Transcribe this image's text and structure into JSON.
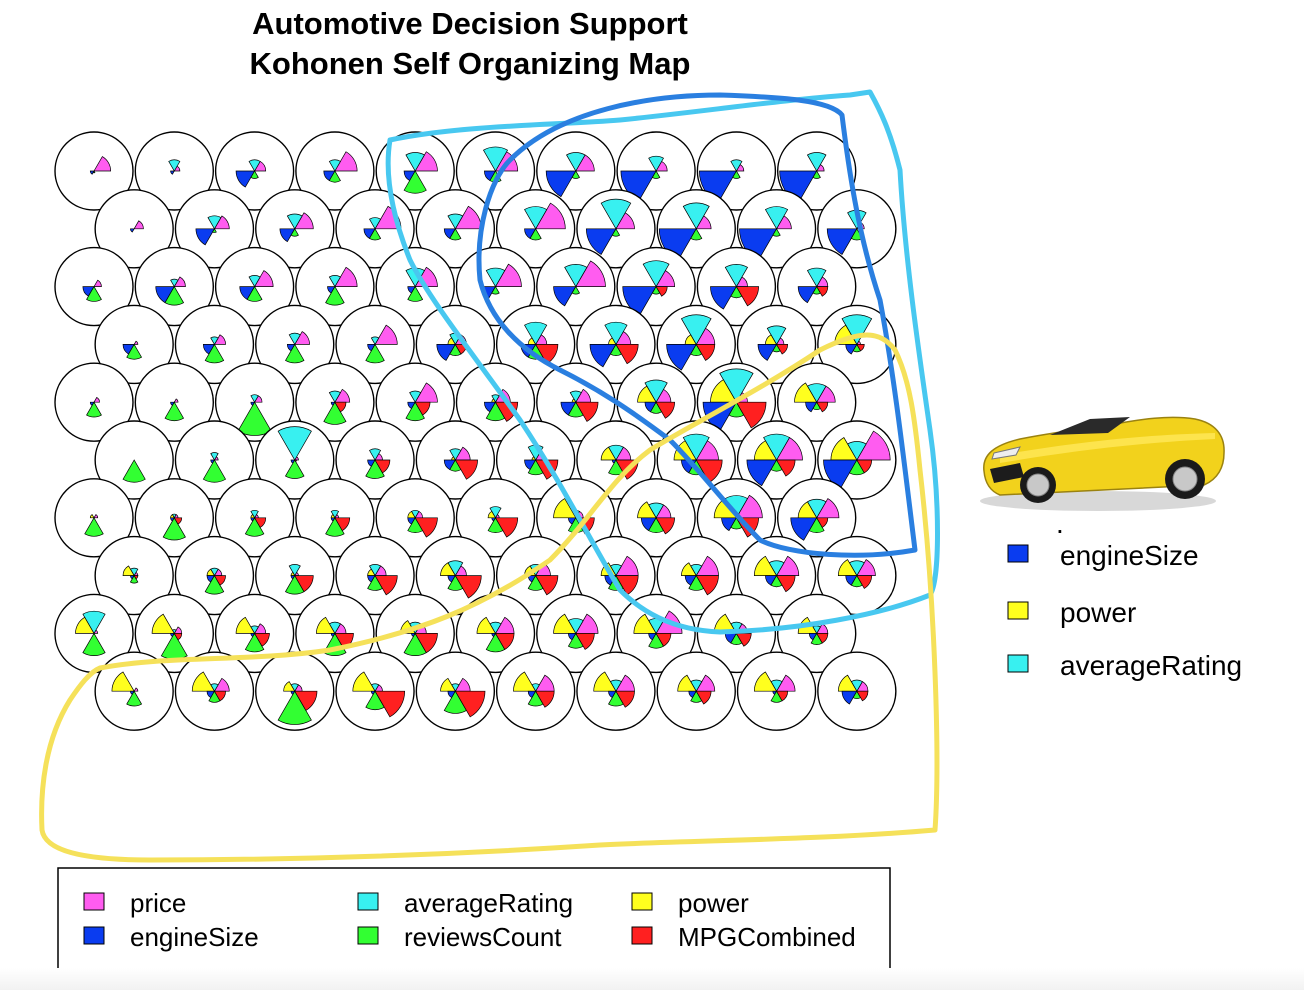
{
  "chart_data": {
    "type": "kohonen-som-codes-plot",
    "title": "Automotive Decision Support",
    "subtitle": "Kohonen Self Organizing Map",
    "grid": {
      "rows": 10,
      "cols": 10,
      "topology": "hexagonal"
    },
    "variables": [
      "price",
      "averageRating",
      "power",
      "engineSize",
      "reviewsCount",
      "MPGCombined"
    ],
    "colors": {
      "price": "#ff5cf0",
      "averageRating": "#38f0f0",
      "power": "#ffff1e",
      "engineSize": "#0a3cf0",
      "reviewsCount": "#32ff32",
      "MPGCombined": "#ff2020"
    },
    "legend": {
      "position": "bottom",
      "columns": [
        [
          "price",
          "engineSize"
        ],
        [
          "averageRating",
          "reviewsCount"
        ],
        [
          "power",
          "MPGCombined"
        ]
      ]
    },
    "side_legend": {
      "position": "right",
      "dot": ".",
      "items": [
        {
          "label": "engineSize",
          "color": "#0a3cf0"
        },
        {
          "label": "power",
          "color": "#ffff1e"
        },
        {
          "label": "averageRating",
          "color": "#38f0f0"
        }
      ]
    },
    "cluster_annotations": [
      {
        "name": "light-blue region",
        "color": "#48c8f0"
      },
      {
        "name": "dark-blue region",
        "color": "#2a7fe0"
      },
      {
        "name": "yellow region",
        "color": "#f5e15a"
      }
    ],
    "car_image": "yellow-convertible-sports-car",
    "codes_note": "values are normalized segment radii (0-1) per variable, order: price, averageRating, power, engineSize, reviewsCount, MPGCombined",
    "codes": [
      [
        [
          0.45,
          0,
          0,
          0.1,
          0.05,
          0
        ],
        [
          0.15,
          0.3,
          0,
          0.1,
          0,
          0
        ],
        [
          0.3,
          0.3,
          0,
          0.5,
          0.2,
          0
        ],
        [
          0.6,
          0.3,
          0,
          0.3,
          0.3,
          0
        ],
        [
          0.6,
          0.5,
          0,
          0.3,
          0.6,
          0
        ],
        [
          0.6,
          0.65,
          0,
          0.3,
          0.3,
          0
        ],
        [
          0.5,
          0.5,
          0,
          0.8,
          0.2,
          0
        ],
        [
          0.3,
          0.4,
          0,
          0.95,
          0.2,
          0
        ],
        [
          0.2,
          0.3,
          0,
          1.0,
          0.2,
          0
        ],
        [
          0.2,
          0.5,
          0,
          1.0,
          0.2,
          0
        ]
      ],
      [
        [
          0.25,
          0,
          0,
          0.1,
          0,
          0
        ],
        [
          0.4,
          0.35,
          0,
          0.5,
          0.1,
          0
        ],
        [
          0.5,
          0.4,
          0,
          0.4,
          0.2,
          0
        ],
        [
          0.7,
          0.3,
          0,
          0.3,
          0.3,
          0
        ],
        [
          0.7,
          0.4,
          0,
          0.3,
          0.3,
          0
        ],
        [
          0.8,
          0.6,
          0,
          0.3,
          0.3,
          0
        ],
        [
          0.5,
          0.8,
          0,
          0.8,
          0.2,
          0
        ],
        [
          0.4,
          0.7,
          0,
          1.0,
          0.3,
          0
        ],
        [
          0.4,
          0.6,
          0,
          1.0,
          0.2,
          0
        ],
        [
          0.2,
          0.5,
          0,
          0.8,
          0.3,
          0
        ]
      ],
      [
        [
          0.2,
          0,
          0,
          0.3,
          0.4,
          0
        ],
        [
          0.3,
          0.2,
          0,
          0.5,
          0.5,
          0
        ],
        [
          0.5,
          0.3,
          0,
          0.4,
          0.4,
          0
        ],
        [
          0.6,
          0.3,
          0,
          0.2,
          0.5,
          0
        ],
        [
          0.6,
          0.5,
          0,
          0.2,
          0.4,
          0
        ],
        [
          0.7,
          0.5,
          0,
          0.4,
          0.2,
          0
        ],
        [
          0.8,
          0.6,
          0,
          0.6,
          0.2,
          0
        ],
        [
          0.5,
          0.7,
          0,
          0.9,
          0.2,
          0.3
        ],
        [
          0.3,
          0.6,
          0,
          0.7,
          0.3,
          0.6
        ],
        [
          0.3,
          0.5,
          0,
          0.5,
          0.2,
          0.3
        ]
      ],
      [
        [
          0.1,
          0,
          0,
          0.3,
          0.4,
          0
        ],
        [
          0.3,
          0.2,
          0,
          0.3,
          0.5,
          0
        ],
        [
          0.4,
          0.3,
          0,
          0.2,
          0.5,
          0
        ],
        [
          0.6,
          0.2,
          0,
          0.2,
          0.5,
          0
        ],
        [
          0.3,
          0.3,
          0.2,
          0.5,
          0.3,
          0.3
        ],
        [
          0.3,
          0.6,
          0.2,
          0.4,
          0.4,
          0.6
        ],
        [
          0.4,
          0.6,
          0.2,
          0.7,
          0.3,
          0.6
        ],
        [
          0.5,
          0.8,
          0.3,
          0.8,
          0.3,
          0.5
        ],
        [
          0.2,
          0.5,
          0.3,
          0.5,
          0.2,
          0.3
        ],
        [
          0.1,
          0.8,
          0.6,
          0.3,
          0.2,
          0.2
        ]
      ],
      [
        [
          0.15,
          0,
          0,
          0.1,
          0.4,
          0
        ],
        [
          0.1,
          0,
          0,
          0.1,
          0.5,
          0
        ],
        [
          0.2,
          0.2,
          0,
          0.1,
          0.9,
          0
        ],
        [
          0.4,
          0.3,
          0,
          0.1,
          0.6,
          0.3
        ],
        [
          0.6,
          0.3,
          0,
          0.2,
          0.5,
          0.4
        ],
        [
          0.4,
          0.2,
          0.1,
          0.3,
          0.5,
          0.6
        ],
        [
          0.4,
          0.3,
          0.1,
          0.4,
          0.4,
          0.6
        ],
        [
          0.4,
          0.6,
          0.5,
          0.3,
          0.3,
          0.5
        ],
        [
          0.3,
          0.9,
          0.7,
          0.9,
          0.4,
          0.8
        ],
        [
          0.5,
          0.5,
          0.6,
          0.3,
          0.2,
          0.3
        ]
      ],
      [
        [
          0,
          0,
          0,
          0,
          0.6,
          0
        ],
        [
          0.1,
          0.2,
          0,
          0.1,
          0.6,
          0
        ],
        [
          0.1,
          0.9,
          0,
          0.1,
          0.5,
          0.05
        ],
        [
          0.2,
          0.3,
          0,
          0.2,
          0.5,
          0.4
        ],
        [
          0.4,
          0.3,
          0.1,
          0.3,
          0.3,
          0.6
        ],
        [
          0.2,
          0.4,
          0.1,
          0.3,
          0.4,
          0.6
        ],
        [
          0.4,
          0.4,
          0.4,
          0.1,
          0.4,
          0.6
        ],
        [
          0.6,
          0.7,
          0.6,
          0.4,
          0.4,
          0.7
        ],
        [
          0.7,
          0.7,
          0.6,
          0.8,
          0.3,
          0.5
        ],
        [
          0.9,
          0.5,
          0.7,
          0.9,
          0.4,
          0.4
        ]
      ],
      [
        [
          0.1,
          0,
          0.1,
          0,
          0.5,
          0
        ],
        [
          0.1,
          0.1,
          0.1,
          0.1,
          0.6,
          0.2
        ],
        [
          0.1,
          0.2,
          0.1,
          0.1,
          0.5,
          0.3
        ],
        [
          0.1,
          0.2,
          0.1,
          0.1,
          0.5,
          0.4
        ],
        [
          0.2,
          0.2,
          0.2,
          0.2,
          0.4,
          0.6
        ],
        [
          0.1,
          0.3,
          0.2,
          0.1,
          0.4,
          0.6
        ],
        [
          0.2,
          0.2,
          0.6,
          0.2,
          0.4,
          0.5
        ],
        [
          0.4,
          0.4,
          0.5,
          0.4,
          0.4,
          0.5
        ],
        [
          0.7,
          0.6,
          0.6,
          0.4,
          0.3,
          0.6
        ],
        [
          0.6,
          0.5,
          0.5,
          0.7,
          0.4,
          0.3
        ]
      ],
      [
        [
          0.1,
          0.2,
          0.3,
          0.1,
          0.2,
          0.1
        ],
        [
          0.2,
          0.2,
          0.2,
          0.2,
          0.5,
          0.3
        ],
        [
          0.1,
          0.3,
          0.1,
          0.1,
          0.5,
          0.5
        ],
        [
          0.3,
          0.3,
          0.2,
          0.2,
          0.4,
          0.6
        ],
        [
          0.3,
          0.4,
          0.4,
          0.2,
          0.4,
          0.7
        ],
        [
          0.4,
          0.3,
          0.3,
          0.2,
          0.4,
          0.6
        ],
        [
          0.6,
          0.3,
          0.4,
          0.3,
          0.4,
          0.6
        ],
        [
          0.6,
          0.3,
          0.4,
          0.3,
          0.4,
          0.6
        ],
        [
          0.6,
          0.4,
          0.6,
          0.3,
          0.3,
          0.5
        ],
        [
          0.5,
          0.4,
          0.5,
          0.3,
          0.3,
          0.4
        ]
      ],
      [
        [
          0.1,
          0.6,
          0.5,
          0,
          0.6,
          0
        ],
        [
          0.2,
          0.1,
          0.6,
          0.1,
          0.7,
          0.2
        ],
        [
          0.3,
          0.2,
          0.5,
          0.1,
          0.5,
          0.4
        ],
        [
          0.3,
          0.3,
          0.5,
          0.1,
          0.6,
          0.5
        ],
        [
          0.3,
          0.3,
          0.4,
          0.1,
          0.6,
          0.6
        ],
        [
          0.5,
          0.3,
          0.5,
          0.1,
          0.5,
          0.5
        ],
        [
          0.6,
          0.4,
          0.6,
          0.2,
          0.4,
          0.5
        ],
        [
          0.7,
          0.4,
          0.6,
          0.2,
          0.4,
          0.4
        ],
        [
          0.3,
          0.3,
          0.6,
          0.3,
          0.3,
          0.4
        ],
        [
          0.3,
          0.2,
          0.5,
          0.2,
          0.3,
          0.3
        ]
      ],
      [
        [
          0.1,
          0,
          0.6,
          0.1,
          0.4,
          0
        ],
        [
          0.4,
          0.2,
          0.6,
          0.2,
          0.3,
          0.3
        ],
        [
          0.2,
          0.2,
          0.3,
          0.1,
          0.9,
          0.6
        ],
        [
          0.2,
          0.2,
          0.6,
          0.1,
          0.5,
          0.8
        ],
        [
          0.4,
          0.2,
          0.4,
          0.2,
          0.6,
          0.8
        ],
        [
          0.5,
          0.2,
          0.6,
          0.2,
          0.4,
          0.5
        ],
        [
          0.5,
          0.3,
          0.6,
          0.2,
          0.4,
          0.5
        ],
        [
          0.5,
          0.3,
          0.5,
          0.2,
          0.3,
          0.4
        ],
        [
          0.5,
          0.3,
          0.6,
          0.1,
          0.3,
          0.3
        ],
        [
          0.3,
          0.3,
          0.5,
          0.4,
          0.2,
          0.3
        ]
      ]
    ]
  }
}
